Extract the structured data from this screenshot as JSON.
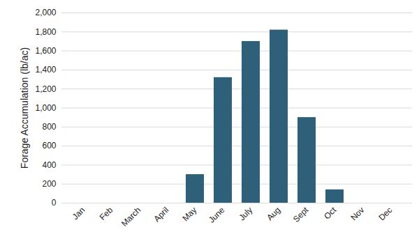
{
  "chart_data": {
    "type": "bar",
    "y_label": "Forage Accumulation (lb/ac)",
    "categories": [
      "Jan",
      "Feb",
      "March",
      "April",
      "May",
      "June",
      "July",
      "Aug",
      "Sept",
      "Oct",
      "Nov",
      "Dec"
    ],
    "values": [
      0,
      0,
      0,
      0,
      300,
      1320,
      1700,
      1820,
      900,
      140,
      0,
      0
    ],
    "color": "#2e6079",
    "ylim": [
      0,
      2000
    ],
    "yticks": [
      0,
      200,
      400,
      600,
      800,
      1000,
      1200,
      1400,
      1600,
      1800,
      2000
    ],
    "grid": true
  }
}
